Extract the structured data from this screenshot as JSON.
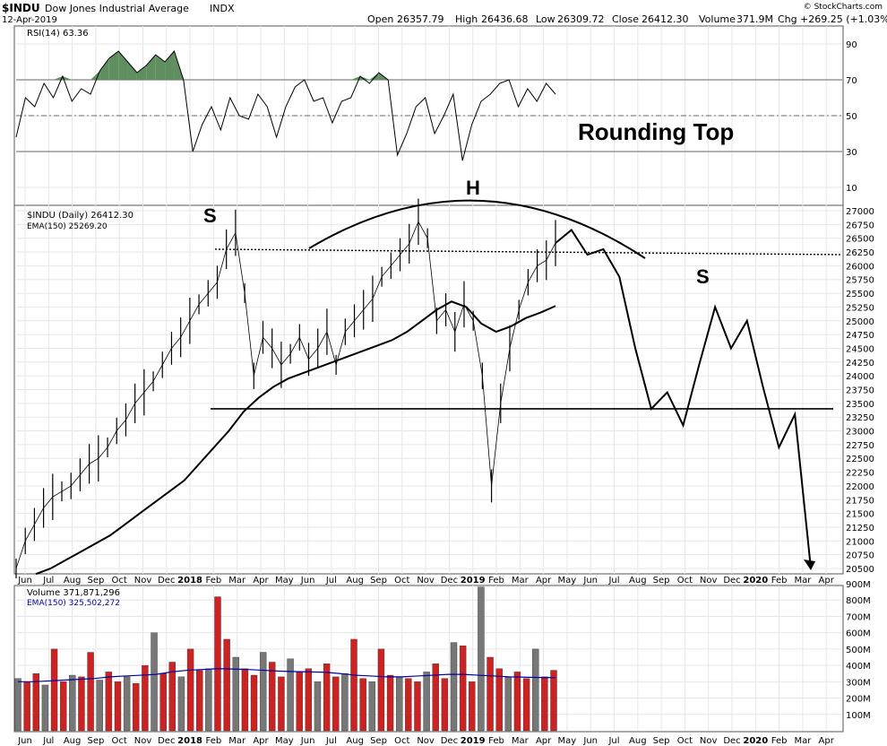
{
  "header": {
    "symbol": "$INDU",
    "name": "Dow Jones Industrial Average",
    "exchange": "INDX",
    "date": "12-Apr-2019",
    "open_label": "Open",
    "open": "26357.79",
    "high_label": "High",
    "high": "26436.68",
    "low_label": "Low",
    "low": "26309.72",
    "close_label": "Close",
    "close": "26412.30",
    "volume_label": "Volume",
    "volume": "371.9M",
    "chg_label": "Chg",
    "chg": "+269.25 (+1.03%)",
    "watermark": "© StockCharts.com"
  },
  "annotations": {
    "rounding_top": "Rounding Top",
    "left_shoulder": "S",
    "head": "H",
    "right_shoulder": "S"
  },
  "colors": {
    "price_line": "#000000",
    "rsi_fill": "#5f8f5f",
    "volume_up": "#777777",
    "volume_down": "#cc2222",
    "volume_ema": "#0000aa",
    "grid": "#e6e6e6"
  },
  "chart_data": [
    {
      "type": "line",
      "title": "RSI(14) 63.36",
      "series": [
        {
          "name": "RSI(14)",
          "values": [
            38,
            60,
            55,
            68,
            60,
            72,
            58,
            65,
            62,
            75,
            82,
            86,
            80,
            74,
            78,
            84,
            80,
            86,
            70,
            30,
            45,
            55,
            42,
            60,
            50,
            48,
            62,
            55,
            38,
            55,
            66,
            70,
            58,
            60,
            46,
            58,
            60,
            72,
            68,
            74,
            70,
            28,
            40,
            55,
            60,
            40,
            50,
            62,
            25,
            45,
            58,
            62,
            68,
            70,
            55,
            65,
            58,
            68,
            62
          ]
        }
      ],
      "ylim": [
        0,
        100
      ],
      "yticks": [
        "90",
        "70",
        "50",
        "30",
        "10"
      ],
      "reference_lines": [
        70,
        50,
        30
      ]
    },
    {
      "type": "line",
      "title": "$INDU (Daily) 26412.30",
      "series": [
        {
          "name": "$INDU (Daily) 26412.30",
          "values": [
            20500,
            21000,
            21300,
            21600,
            21800,
            21900,
            22000,
            22200,
            22400,
            22500,
            22700,
            23000,
            23200,
            23500,
            23700,
            23900,
            24200,
            24500,
            24700,
            25000,
            25300,
            25500,
            25700,
            26300,
            26600,
            25500,
            24000,
            24700,
            24500,
            24200,
            24400,
            24700,
            24300,
            24500,
            24800,
            24200,
            24800,
            25000,
            25200,
            25400,
            25800,
            26000,
            26200,
            26400,
            26800,
            26500,
            25000,
            25200,
            24800,
            25300,
            25000,
            24000,
            22000,
            23500,
            24500,
            25200,
            25700,
            26000,
            26100,
            26412
          ]
        },
        {
          "name": "EMA(150) 25269.20",
          "values": [
            20400,
            20500,
            20650,
            20800,
            20950,
            21100,
            21300,
            21500,
            21700,
            21900,
            22100,
            22400,
            22700,
            23000,
            23350,
            23600,
            23800,
            23950,
            24050,
            24150,
            24250,
            24350,
            24450,
            24550,
            24650,
            24800,
            25000,
            25200,
            25350,
            25250,
            24950,
            24800,
            24900,
            25050,
            25150,
            25269
          ]
        },
        {
          "name": "Projection",
          "values": [
            26412,
            26650,
            26200,
            26300,
            25800,
            24500,
            23400,
            23700,
            23100,
            24200,
            25250,
            24500,
            25000,
            23800,
            22700,
            23300,
            20500
          ]
        }
      ],
      "ylim": [
        20500,
        27000
      ],
      "yticks": [
        "27000",
        "26750",
        "26500",
        "26250",
        "26000",
        "25750",
        "25500",
        "25250",
        "25000",
        "24750",
        "24500",
        "24250",
        "24000",
        "23750",
        "23500",
        "23250",
        "23000",
        "22750",
        "22500",
        "22250",
        "22000",
        "21750",
        "21500",
        "21250",
        "21000",
        "20750",
        "20500"
      ],
      "reference_lines": [
        {
          "name": "neckline",
          "value": 23400
        },
        {
          "name": "top line",
          "value": 26300
        }
      ],
      "xticks": [
        "Jun",
        "Jul",
        "Aug",
        "Sep",
        "Oct",
        "Nov",
        "Dec",
        "2018",
        "Feb",
        "Mar",
        "Apr",
        "May",
        "Jun",
        "Jul",
        "Aug",
        "Sep",
        "Oct",
        "Nov",
        "Dec",
        "2019",
        "Feb",
        "Mar",
        "Apr",
        "May",
        "Jun",
        "Jul",
        "Aug",
        "Sep",
        "Oct",
        "Nov",
        "Dec",
        "2020",
        "Feb",
        "Mar",
        "Apr"
      ]
    },
    {
      "type": "bar",
      "title": "Volume 371,871,296",
      "series": [
        {
          "name": "Volume",
          "values": [
            320,
            300,
            350,
            280,
            500,
            300,
            340,
            330,
            480,
            310,
            360,
            300,
            330,
            290,
            400,
            600,
            350,
            420,
            330,
            500,
            370,
            380,
            820,
            560,
            450,
            380,
            340,
            480,
            420,
            330,
            440,
            360,
            380,
            300,
            410,
            330,
            350,
            560,
            320,
            300,
            500,
            340,
            330,
            320,
            300,
            360,
            410,
            320,
            540,
            520,
            300,
            880,
            450,
            380,
            330,
            360,
            320,
            500,
            330,
            370
          ]
        },
        {
          "name": "EMA(150) 325,502,272",
          "values": [
            300,
            300,
            305,
            310,
            315,
            320,
            330,
            335,
            340,
            345,
            360,
            370,
            375,
            380,
            378,
            375,
            370,
            365,
            362,
            360,
            358,
            350,
            340,
            335,
            330,
            330,
            335,
            340,
            345,
            345,
            340,
            335,
            330,
            328,
            326,
            325
          ]
        }
      ],
      "ylim": [
        0,
        900
      ],
      "yticks": [
        "900M",
        "800M",
        "700M",
        "600M",
        "500M",
        "400M",
        "300M",
        "200M",
        "100M"
      ]
    }
  ]
}
